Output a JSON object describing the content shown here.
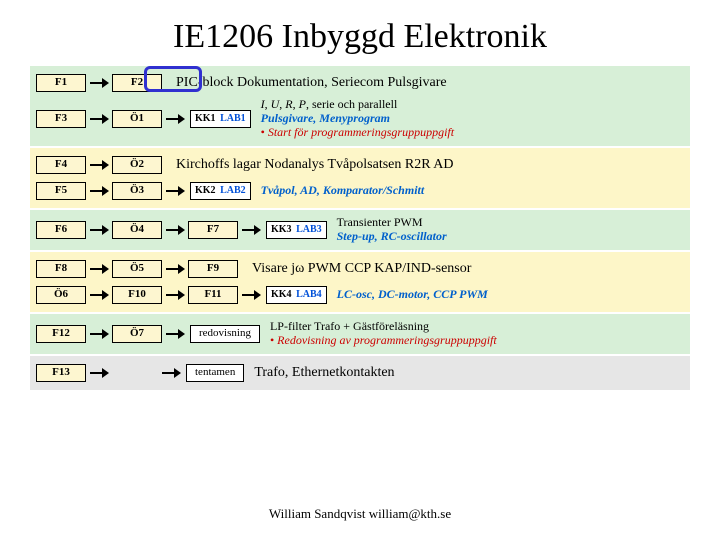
{
  "title": "IE1206 Inbyggd Elektronik",
  "footer": "William Sandqvist  william@kth.se",
  "highlight": {
    "target": "F2"
  },
  "band_colors": {
    "green": "#d7efd7",
    "yellow": "#fdf6c8",
    "gray": "#e6e6e6"
  },
  "cell_bg": "#fdf6d0",
  "bands": [
    {
      "bg": "green",
      "rows": [
        {
          "cells": [
            "F1",
            "→",
            "F2"
          ],
          "text_main": "PIC-block Dokumentation, Seriecom Pulsgivare"
        },
        {
          "cells": [
            "F3",
            "→",
            "Ö1",
            "→",
            "KK1|LAB1"
          ],
          "right_lines": [
            {
              "html": "<i>I</i>, <i>U</i>, <i>R</i>, <i>P</i>, serie och parallell"
            },
            {
              "cls": "blue-italic",
              "text": "Pulsgivare, Menyprogram"
            },
            {
              "cls": "red-italic",
              "html": "<span class='bullet'>•</span> Start för programmeringsgruppuppgift"
            }
          ]
        }
      ]
    },
    {
      "bg": "yellow",
      "rows": [
        {
          "cells": [
            "F4",
            "→",
            "Ö2"
          ],
          "text_main": "Kirchoffs lagar Nodanalys Tvåpolsatsen R2R AD"
        },
        {
          "cells": [
            "F5",
            "→",
            "Ö3",
            "→",
            "KK2|LAB2"
          ],
          "right_lines": [
            {
              "cls": "blue-italic",
              "text": "Tvåpol, AD, Komparator/Schmitt"
            }
          ]
        }
      ]
    },
    {
      "bg": "green",
      "rows": [
        {
          "cells": [
            "F6",
            "→",
            "Ö4",
            "→",
            "F7",
            "→",
            "KK3|LAB3"
          ],
          "right_lines": [
            {
              "text": "Transienter PWM"
            },
            {
              "cls": "blue-italic",
              "text": "Step-up, RC-oscillator"
            }
          ]
        }
      ]
    },
    {
      "bg": "yellow",
      "rows": [
        {
          "cells": [
            "F8",
            "→",
            "Ö5",
            "→",
            "F9"
          ],
          "text_main": "Visare  jω PWM CCP KAP/IND-sensor"
        },
        {
          "cells": [
            "Ö6",
            "→",
            "F10",
            "→",
            "F11",
            "→",
            "KK4|LAB4"
          ],
          "right_lines": [
            {
              "cls": "blue-italic",
              "text": "LC-osc, DC-motor, CCP PWM"
            }
          ]
        }
      ]
    },
    {
      "bg": "green",
      "rows": [
        {
          "cells": [
            "F12",
            "→",
            "Ö7",
            "→",
            "WIDE:redovisning"
          ],
          "right_lines": [
            {
              "text": "LP-filter Trafo + Gästföreläsning"
            },
            {
              "cls": "red-italic",
              "html": "<span class='bullet'>•</span> Redovisning av programmeringsgruppuppgift"
            }
          ]
        }
      ]
    },
    {
      "bg": "gray",
      "rows": [
        {
          "cells": [
            "F13",
            "→",
            "SPACER",
            "→",
            "WIDE:tentamen"
          ],
          "text_main": "Trafo, Ethernetkontakten"
        }
      ]
    }
  ]
}
